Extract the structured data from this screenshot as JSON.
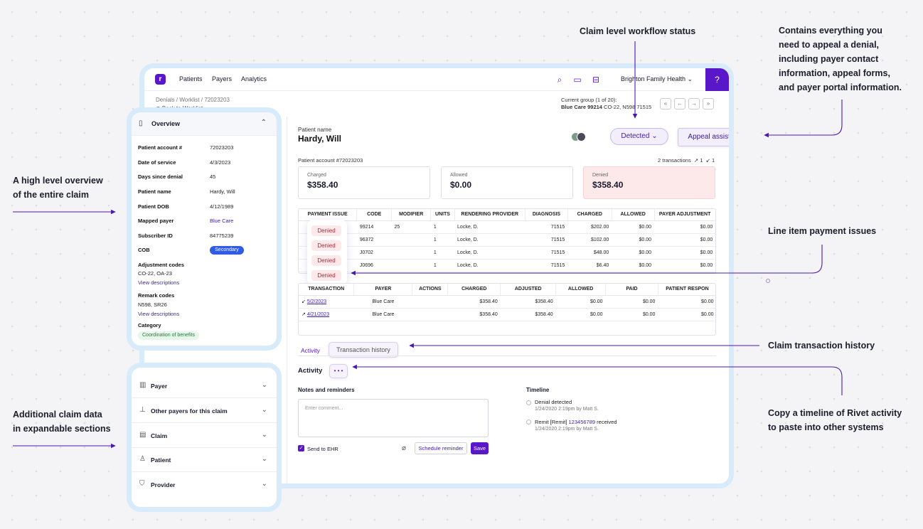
{
  "callouts": {
    "workflow_status": "Claim level workflow status",
    "appeal": [
      "Contains everything you",
      "need to appeal a denial,",
      "including payer contact",
      "information, appeal forms,",
      "and payer portal information."
    ],
    "overview": [
      "A high level overview",
      "of the entire claim"
    ],
    "line_issues": "Line item payment issues",
    "tx_history": "Claim transaction history",
    "additional": [
      "Additional claim data",
      "in expandable sections"
    ],
    "timeline": [
      "Copy a timeline of Rivet activity",
      "to paste into other systems"
    ]
  },
  "topbar": {
    "logo": "r",
    "nav": [
      "Patients",
      "Payers",
      "Analytics"
    ],
    "org": "Brighton Family Health ⌄",
    "icons": [
      "search-icon",
      "folder-icon",
      "inbox-icon",
      "help-icon"
    ]
  },
  "breadcrumb": "Denials / Worklist / 72023203",
  "back": "⊙ Back to Worklist",
  "group": {
    "line1": "Current group (1 of 20):",
    "name": "Blue Care 99214",
    "codes": "CO-22, N598 71515"
  },
  "patient": {
    "label": "Patient name",
    "name": "Hardy, Will",
    "account": "Patient account #72023203",
    "transactions": "2 transactions",
    "tx_in": "↗ 1",
    "tx_out": "↙ 1"
  },
  "status": "Detected ⌄",
  "appeal_button": "Appeal assistance",
  "amounts": [
    {
      "label": "Charged",
      "value": "$358.40"
    },
    {
      "label": "Allowed",
      "value": "$0.00"
    },
    {
      "label": "Denied",
      "value": "$358.40"
    }
  ],
  "line_table": {
    "headers": [
      "PAYMENT ISSUE",
      "CODE",
      "MODIFIER",
      "UNITS",
      "RENDERING PROVIDER",
      "DIAGNOSIS",
      "CHARGED",
      "ALLOWED",
      "PAYER ADJUSTMENT",
      "PA"
    ],
    "rows": [
      [
        "",
        "99214",
        "25",
        "1",
        "Locke, D.",
        "71515",
        "$202.00",
        "$0.00",
        "$0.00"
      ],
      [
        "",
        "96372",
        "",
        "1",
        "Locke, D.",
        "71515",
        "$102.00",
        "$0.00",
        "$0.00"
      ],
      [
        "",
        "J0702",
        "",
        "1",
        "Locke, D.",
        "71515",
        "$48.00",
        "$0.00",
        "$0.00"
      ],
      [
        "",
        "J0696",
        "",
        "1",
        "Locke, D.",
        "71515",
        "$6.40",
        "$0.00",
        "$0.00"
      ]
    ],
    "issue": "Denied"
  },
  "tx_table": {
    "headers": [
      "TRANSACTION",
      "PAYER",
      "ACTIONS",
      "CHARGED",
      "ADJUSTED",
      "ALLOWED",
      "PAID",
      "PATIENT RESPON"
    ],
    "rows": [
      [
        "↙",
        "5/2/2023",
        "Blue Care",
        "",
        "$358.40",
        "$358.40",
        "$0.00",
        "$0.00",
        "$0.00"
      ],
      [
        "↗",
        "4/21/2023",
        "Blue Care",
        "",
        "$358.40",
        "$358.40",
        "$0.00",
        "$0.00",
        "$0.00"
      ]
    ]
  },
  "tabs": {
    "activity": "Activity",
    "tx_history": "Transaction history"
  },
  "activity": {
    "title": "Activity",
    "dots": "• • •",
    "notes_title": "Notes and reminders",
    "placeholder": "Enter comment...",
    "send_ehr": "Send to EHR",
    "schedule": "Schedule reminder",
    "save": "Save",
    "timeline_title": "Timeline",
    "timeline": [
      {
        "text": "Denial detected",
        "time": "1/24/2020 2:19pm by Matt S."
      },
      {
        "text_pre": "Remit [Remit] ",
        "link": "123456789",
        "text_post": " received",
        "time": "1/24/2020 2:19pm by Matt S."
      }
    ]
  },
  "overview": {
    "title": "Overview",
    "rows": [
      {
        "label": "Patient account #",
        "value": "72023203"
      },
      {
        "label": "Date of service",
        "value": "4/3/2023"
      },
      {
        "label": "Days since denial",
        "value": "45"
      },
      {
        "label": "Patient name",
        "value": "Hardy, Will"
      },
      {
        "label": "Patient DOB",
        "value": "4/12/1989"
      },
      {
        "label": "Mapped payer",
        "value": "Blue Care"
      },
      {
        "label": "Subscriber ID",
        "value": "84775239"
      },
      {
        "label": "COB",
        "value": "Secondary"
      }
    ],
    "adj_label": "Adjustment codes",
    "adj_value": "CO-22, OA-23",
    "remark_label": "Remark codes",
    "remark_value": "N598, SR26",
    "view_desc": "View descriptions",
    "category_label": "Category",
    "category_value": "Coordination of benefits"
  },
  "sections": [
    {
      "icon": "building-icon",
      "label": "Payer"
    },
    {
      "icon": "pin-icon",
      "label": "Other payers for this claim"
    },
    {
      "icon": "document-icon",
      "label": "Claim"
    },
    {
      "icon": "person-icon",
      "label": "Patient"
    },
    {
      "icon": "shield-icon",
      "label": "Provider"
    }
  ]
}
